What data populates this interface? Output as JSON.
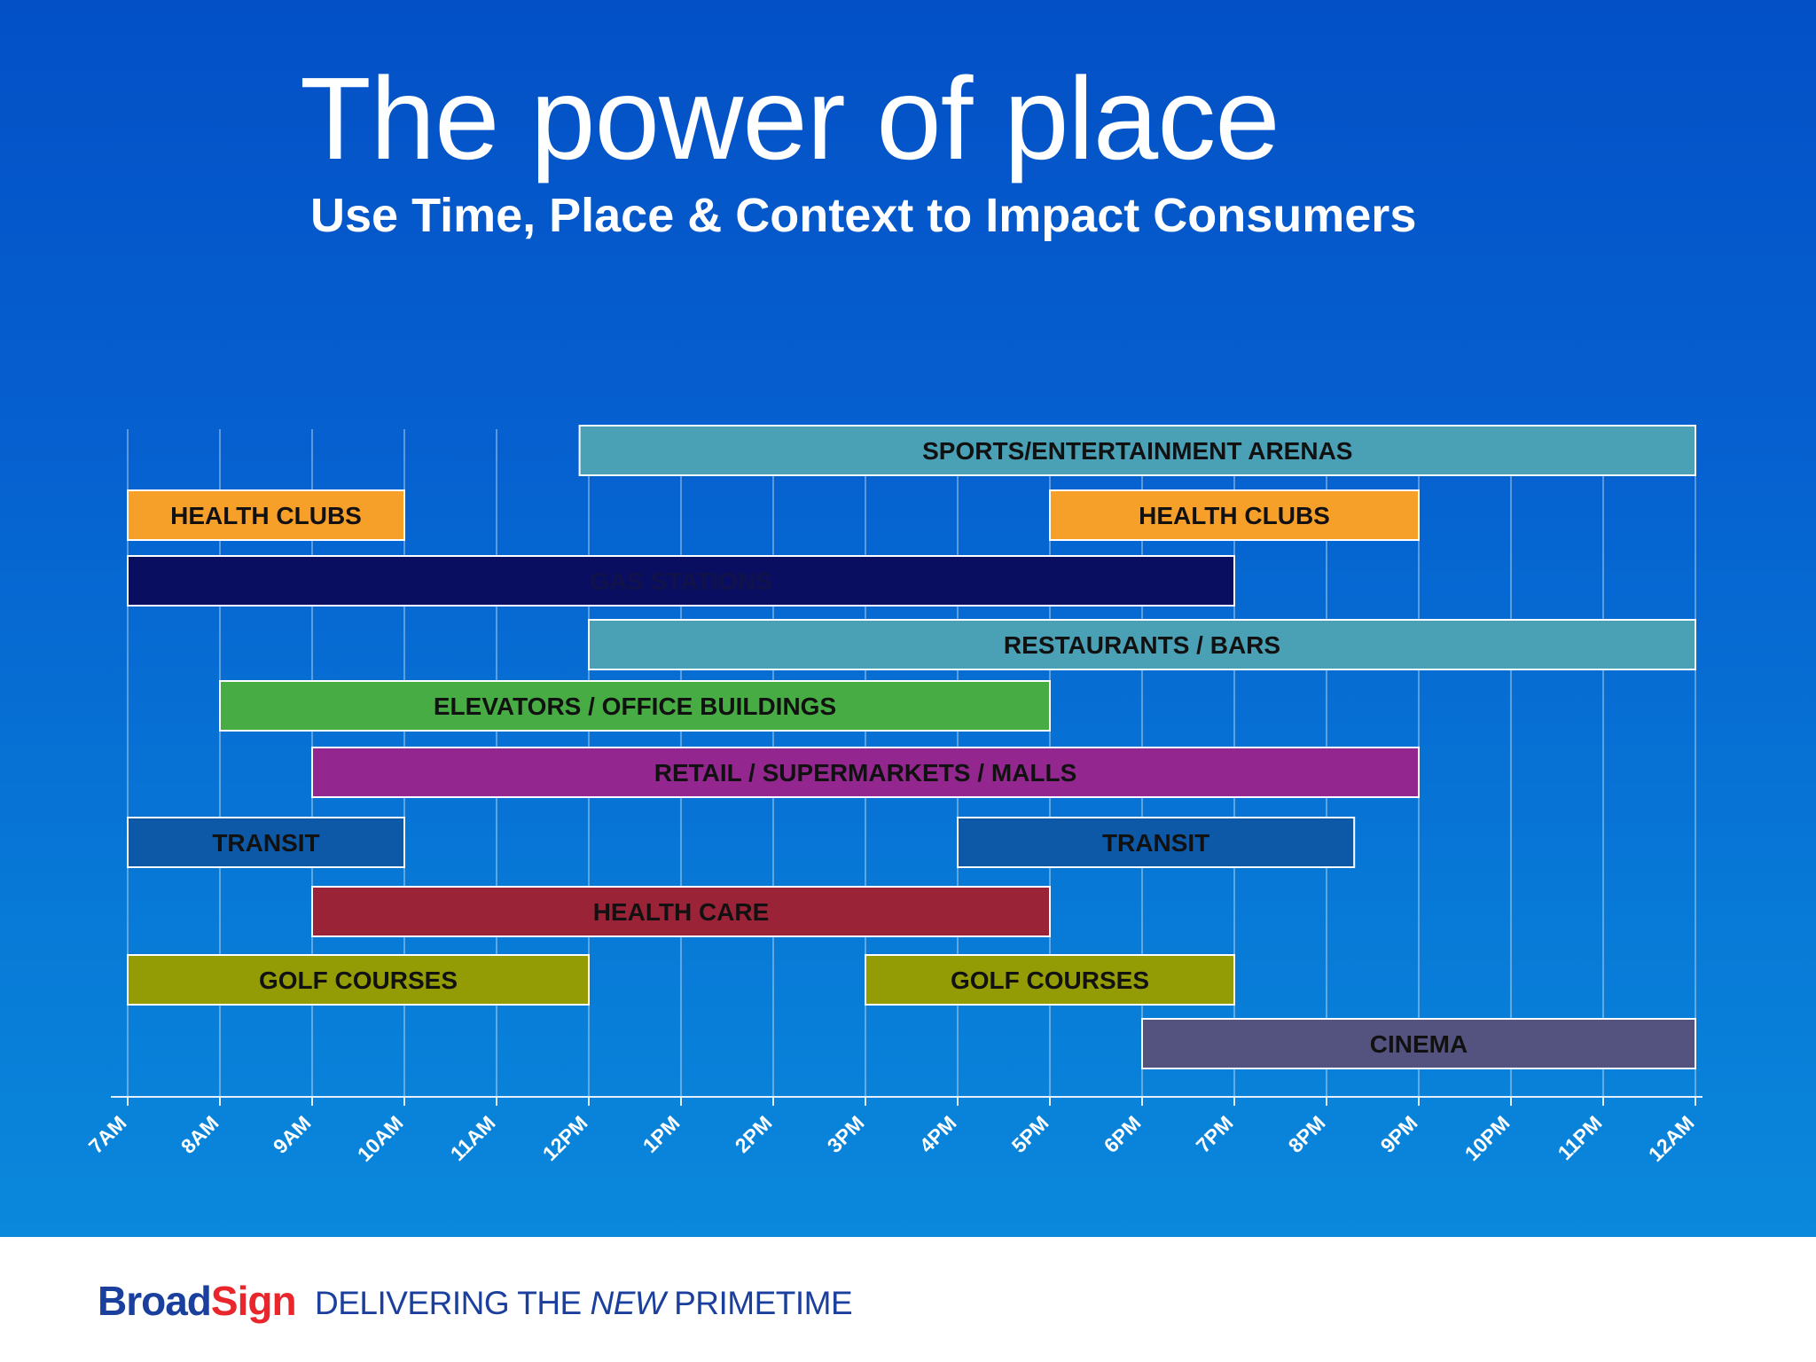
{
  "slide": {
    "title": "The power of place",
    "subtitle": "Use Time, Place & Context to Impact Consumers"
  },
  "footer": {
    "brand_a": "Broad",
    "brand_b": "Sign",
    "tagline_a": "DELIVERING THE ",
    "tagline_em": "NEW",
    "tagline_b": " PRIMETIME"
  },
  "colors": {
    "background_top": "#0350c6",
    "background_bottom": "#0a88db",
    "brand_blue": "#1a3f9c",
    "brand_red": "#e8262c"
  },
  "chart_data": {
    "type": "bar",
    "orientation": "horizontal-timeline",
    "title": "",
    "xlabel": "",
    "ylabel": "",
    "grid": true,
    "x_ticks": [
      "7AM",
      "8AM",
      "9AM",
      "10AM",
      "11AM",
      "12PM",
      "1PM",
      "2PM",
      "3PM",
      "4PM",
      "5PM",
      "6PM",
      "7PM",
      "8PM",
      "9PM",
      "10PM",
      "11PM",
      "12AM"
    ],
    "x_range_hours": [
      7,
      24
    ],
    "bars": [
      {
        "label": "SPORTS/ENTERTAINMENT ARENAS",
        "start": 11.9,
        "end": 24,
        "row": 0,
        "color": "#4aa0b5",
        "label_color": "#111111"
      },
      {
        "label": "HEALTH CLUBS",
        "start": 7,
        "end": 10,
        "row": 1,
        "color": "#f6a02a",
        "label_color": "#111111"
      },
      {
        "label": "HEALTH CLUBS",
        "start": 17,
        "end": 21,
        "row": 1,
        "color": "#f6a02a",
        "label_color": "#111111"
      },
      {
        "label": "GAS STATIONS",
        "start": 7,
        "end": 19,
        "row": 2,
        "color": "#0a0e60",
        "label_color": "#11124a"
      },
      {
        "label": "RESTAURANTS / BARS",
        "start": 12,
        "end": 24,
        "row": 3,
        "color": "#4aa0b5",
        "label_color": "#111111"
      },
      {
        "label": "ELEVATORS / OFFICE BUILDINGS",
        "start": 8,
        "end": 17,
        "row": 4,
        "color": "#47ac43",
        "label_color": "#111111"
      },
      {
        "label": "RETAIL / SUPERMARKETS / MALLS",
        "start": 9,
        "end": 21,
        "row": 5,
        "color": "#93278f",
        "label_color": "#111111"
      },
      {
        "label": "TRANSIT",
        "start": 7,
        "end": 10,
        "row": 6,
        "color": "#0d58a7",
        "label_color": "#111111"
      },
      {
        "label": "TRANSIT",
        "start": 16,
        "end": 20.3,
        "row": 6,
        "color": "#0d58a7",
        "label_color": "#111111"
      },
      {
        "label": "HEALTH CARE",
        "start": 9,
        "end": 17,
        "row": 7,
        "color": "#9b2338",
        "label_color": "#111111"
      },
      {
        "label": "GOLF COURSES",
        "start": 7,
        "end": 12,
        "row": 8,
        "color": "#939c05",
        "label_color": "#111111"
      },
      {
        "label": "GOLF COURSES",
        "start": 15,
        "end": 19,
        "row": 8,
        "color": "#939c05",
        "label_color": "#111111"
      },
      {
        "label": "CINEMA",
        "start": 18,
        "end": 24,
        "row": 9,
        "color": "#545380",
        "label_color": "#111111"
      }
    ]
  }
}
